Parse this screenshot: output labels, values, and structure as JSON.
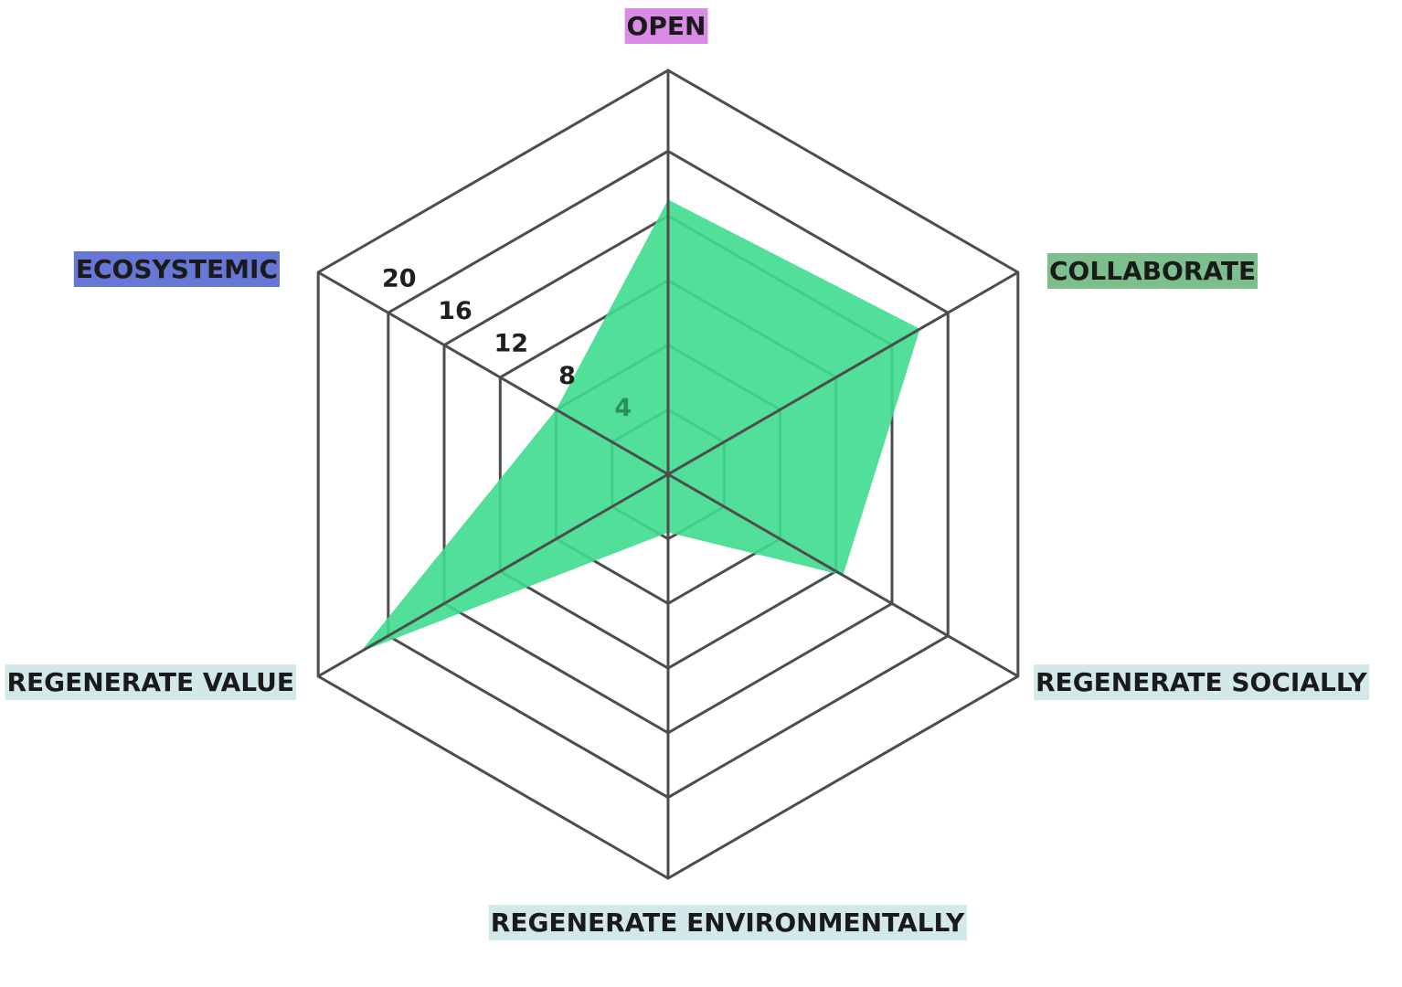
{
  "chart_data": {
    "type": "radar",
    "axes": [
      {
        "label": "OPEN",
        "value": 17,
        "label_bg": "#d98be6"
      },
      {
        "label": "COLLABORATE",
        "value": 18,
        "label_bg": "#7dbf8c"
      },
      {
        "label": "REGENERATE SOCIALLY",
        "value": 12.5,
        "label_bg": "#d3e8e8"
      },
      {
        "label": "REGENERATE ENVIRONMENTALLY",
        "value": 3.6,
        "label_bg": "#d3e8e8"
      },
      {
        "label": "REGENERATE VALUE",
        "value": 22,
        "label_bg": "#d3e8e8"
      },
      {
        "label": "ECOSYSTEMIC",
        "value": 8,
        "label_bg": "#6677d6"
      }
    ],
    "ticks": [
      "4",
      "8",
      "12",
      "16",
      "20"
    ],
    "range": [
      0,
      25
    ],
    "grid": true,
    "fill_color": "#3fdc8f",
    "fill_opacity": 0.9
  }
}
